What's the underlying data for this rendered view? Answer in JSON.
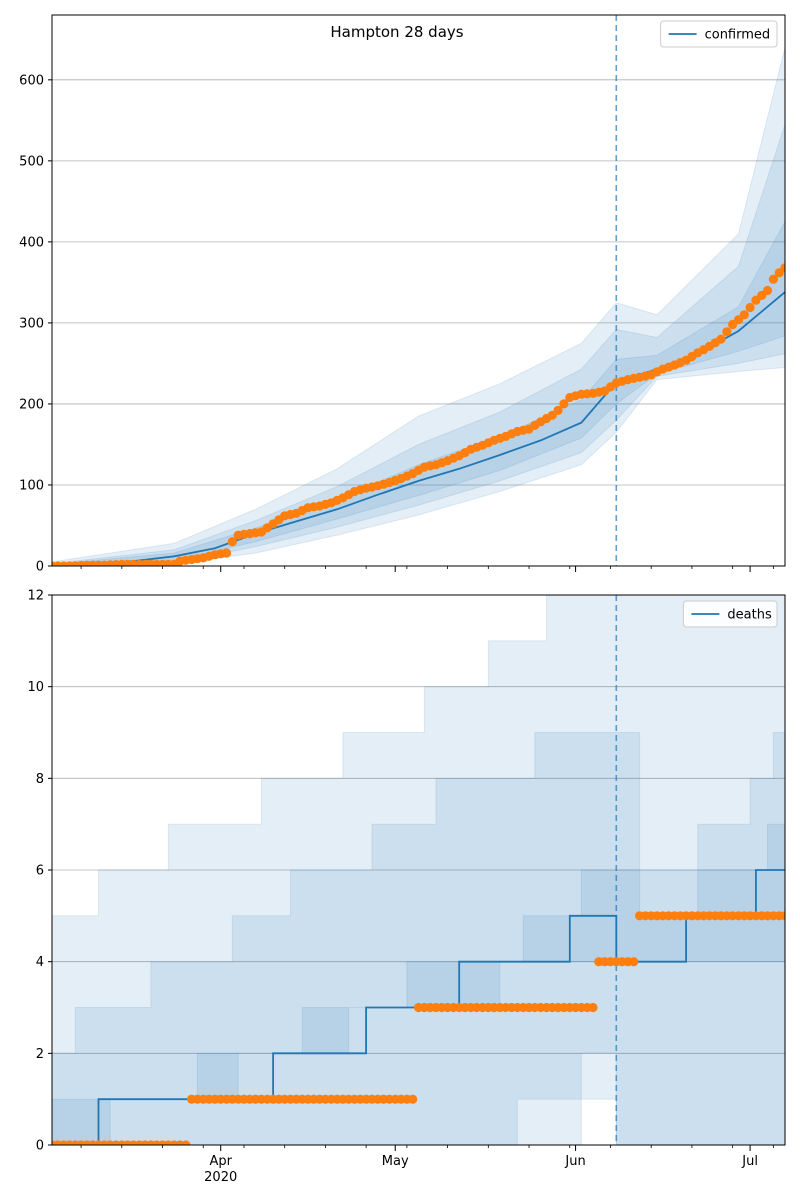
{
  "chart_data": [
    {
      "type": "line",
      "title": "Hampton 28 days",
      "xlabel": "",
      "ylabel": "",
      "ylim": [
        0,
        680
      ],
      "yticks": [
        0,
        100,
        200,
        300,
        400,
        500,
        600
      ],
      "xlim": [
        "2020-03-03",
        "2020-07-07"
      ],
      "x_tick_labels": [
        {
          "date": "2020-04-01",
          "label": "Apr",
          "sublabel": "2020"
        },
        {
          "date": "2020-05-01",
          "label": "May",
          "sublabel": ""
        },
        {
          "date": "2020-06-01",
          "label": "Jun",
          "sublabel": ""
        },
        {
          "date": "2020-07-01",
          "label": "Jul",
          "sublabel": ""
        }
      ],
      "grid": "horizontal",
      "legend": {
        "position": "top-right",
        "entries": [
          "confirmed"
        ]
      },
      "forecast_start": "2020-06-08",
      "colors": {
        "fit": "#1f77b4",
        "observed": "#ff7f0e",
        "band": "#1f77b4"
      },
      "fit": {
        "name": "confirmed",
        "points": [
          [
            "2020-03-03",
            1
          ],
          [
            "2020-03-10",
            3
          ],
          [
            "2020-03-17",
            6
          ],
          [
            "2020-03-24",
            12
          ],
          [
            "2020-03-31",
            22
          ],
          [
            "2020-04-07",
            40
          ],
          [
            "2020-04-14",
            55
          ],
          [
            "2020-04-21",
            70
          ],
          [
            "2020-04-28",
            88
          ],
          [
            "2020-05-05",
            105
          ],
          [
            "2020-05-12",
            120
          ],
          [
            "2020-05-19",
            137
          ],
          [
            "2020-05-26",
            155
          ],
          [
            "2020-06-02",
            177
          ],
          [
            "2020-06-08",
            227
          ],
          [
            "2020-06-15",
            243
          ],
          [
            "2020-06-22",
            262
          ],
          [
            "2020-06-29",
            290
          ],
          [
            "2020-07-07",
            338
          ]
        ]
      },
      "bands": [
        {
          "level": "outer",
          "lower": [
            [
              "2020-03-03",
              0
            ],
            [
              "2020-03-24",
              2
            ],
            [
              "2020-04-07",
              16
            ],
            [
              "2020-04-21",
              38
            ],
            [
              "2020-05-05",
              63
            ],
            [
              "2020-05-19",
              92
            ],
            [
              "2020-06-02",
              125
            ],
            [
              "2020-06-08",
              165
            ],
            [
              "2020-06-15",
              230
            ],
            [
              "2020-06-29",
              240
            ],
            [
              "2020-07-07",
              245
            ]
          ],
          "upper": [
            [
              "2020-03-03",
              5
            ],
            [
              "2020-03-24",
              28
            ],
            [
              "2020-04-07",
              70
            ],
            [
              "2020-04-21",
              120
            ],
            [
              "2020-05-05",
              185
            ],
            [
              "2020-05-19",
              225
            ],
            [
              "2020-06-02",
              275
            ],
            [
              "2020-06-08",
              325
            ],
            [
              "2020-06-15",
              310
            ],
            [
              "2020-06-29",
              410
            ],
            [
              "2020-07-07",
              640
            ]
          ]
        },
        {
          "level": "middle",
          "lower": [
            [
              "2020-03-03",
              0
            ],
            [
              "2020-03-24",
              4
            ],
            [
              "2020-04-07",
              24
            ],
            [
              "2020-04-21",
              48
            ],
            [
              "2020-05-05",
              75
            ],
            [
              "2020-05-19",
              105
            ],
            [
              "2020-06-02",
              140
            ],
            [
              "2020-06-08",
              180
            ],
            [
              "2020-06-15",
              234
            ],
            [
              "2020-06-29",
              250
            ],
            [
              "2020-07-07",
              262
            ]
          ],
          "upper": [
            [
              "2020-03-03",
              3
            ],
            [
              "2020-03-24",
              20
            ],
            [
              "2020-04-07",
              56
            ],
            [
              "2020-04-21",
              98
            ],
            [
              "2020-05-05",
              150
            ],
            [
              "2020-05-19",
              190
            ],
            [
              "2020-06-02",
              243
            ],
            [
              "2020-06-08",
              292
            ],
            [
              "2020-06-15",
              282
            ],
            [
              "2020-06-29",
              370
            ],
            [
              "2020-07-07",
              545
            ]
          ]
        },
        {
          "level": "inner",
          "lower": [
            [
              "2020-03-03",
              1
            ],
            [
              "2020-03-24",
              7
            ],
            [
              "2020-04-07",
              30
            ],
            [
              "2020-04-21",
              58
            ],
            [
              "2020-05-05",
              87
            ],
            [
              "2020-05-19",
              118
            ],
            [
              "2020-06-02",
              158
            ],
            [
              "2020-06-08",
              200
            ],
            [
              "2020-06-15",
              237
            ],
            [
              "2020-06-29",
              265
            ],
            [
              "2020-07-07",
              284
            ]
          ],
          "upper": [
            [
              "2020-03-03",
              2
            ],
            [
              "2020-03-24",
              16
            ],
            [
              "2020-04-07",
              47
            ],
            [
              "2020-04-21",
              82
            ],
            [
              "2020-05-05",
              125
            ],
            [
              "2020-05-19",
              160
            ],
            [
              "2020-06-02",
              205
            ],
            [
              "2020-06-08",
              255
            ],
            [
              "2020-06-15",
              260
            ],
            [
              "2020-06-29",
              320
            ],
            [
              "2020-07-07",
              425
            ]
          ]
        }
      ],
      "observed": {
        "name": "observed",
        "points": [
          [
            "2020-03-03",
            0
          ],
          [
            "2020-03-06",
            0
          ],
          [
            "2020-03-09",
            1
          ],
          [
            "2020-03-12",
            1
          ],
          [
            "2020-03-15",
            2
          ],
          [
            "2020-03-18",
            2
          ],
          [
            "2020-03-21",
            2
          ],
          [
            "2020-03-24",
            2
          ],
          [
            "2020-03-25",
            6
          ],
          [
            "2020-03-27",
            8
          ],
          [
            "2020-03-29",
            10
          ],
          [
            "2020-03-31",
            14
          ],
          [
            "2020-04-02",
            16
          ],
          [
            "2020-04-03",
            30
          ],
          [
            "2020-04-04",
            38
          ],
          [
            "2020-04-06",
            40
          ],
          [
            "2020-04-08",
            42
          ],
          [
            "2020-04-10",
            52
          ],
          [
            "2020-04-12",
            62
          ],
          [
            "2020-04-14",
            65
          ],
          [
            "2020-04-16",
            72
          ],
          [
            "2020-04-18",
            74
          ],
          [
            "2020-04-20",
            78
          ],
          [
            "2020-04-22",
            84
          ],
          [
            "2020-04-24",
            92
          ],
          [
            "2020-04-26",
            96
          ],
          [
            "2020-04-28",
            99
          ],
          [
            "2020-04-30",
            103
          ],
          [
            "2020-05-02",
            108
          ],
          [
            "2020-05-04",
            114
          ],
          [
            "2020-05-06",
            122
          ],
          [
            "2020-05-08",
            125
          ],
          [
            "2020-05-10",
            130
          ],
          [
            "2020-05-12",
            136
          ],
          [
            "2020-05-14",
            144
          ],
          [
            "2020-05-16",
            149
          ],
          [
            "2020-05-18",
            155
          ],
          [
            "2020-05-20",
            160
          ],
          [
            "2020-05-22",
            166
          ],
          [
            "2020-05-24",
            169
          ],
          [
            "2020-05-26",
            178
          ],
          [
            "2020-05-28",
            186
          ],
          [
            "2020-05-29",
            192
          ],
          [
            "2020-05-31",
            208
          ],
          [
            "2020-06-02",
            212
          ],
          [
            "2020-06-04",
            213
          ],
          [
            "2020-06-06",
            216
          ],
          [
            "2020-06-08",
            226
          ],
          [
            "2020-06-10",
            230
          ],
          [
            "2020-06-12",
            233
          ],
          [
            "2020-06-14",
            236
          ],
          [
            "2020-06-16",
            243
          ],
          [
            "2020-06-18",
            248
          ],
          [
            "2020-06-20",
            254
          ],
          [
            "2020-06-22",
            263
          ],
          [
            "2020-06-24",
            271
          ],
          [
            "2020-06-26",
            280
          ],
          [
            "2020-06-28",
            298
          ],
          [
            "2020-06-30",
            310
          ],
          [
            "2020-07-02",
            328
          ],
          [
            "2020-07-04",
            340
          ],
          [
            "2020-07-05",
            354
          ],
          [
            "2020-07-06",
            362
          ],
          [
            "2020-07-07",
            368
          ]
        ]
      }
    },
    {
      "type": "line",
      "title": "",
      "xlabel": "",
      "ylabel": "",
      "ylim": [
        0,
        12
      ],
      "yticks": [
        0,
        2,
        4,
        6,
        8,
        10,
        12
      ],
      "xlim": [
        "2020-03-03",
        "2020-07-07"
      ],
      "x_tick_labels": [
        {
          "date": "2020-04-01",
          "label": "Apr",
          "sublabel": "2020"
        },
        {
          "date": "2020-05-01",
          "label": "May",
          "sublabel": ""
        },
        {
          "date": "2020-06-01",
          "label": "Jun",
          "sublabel": ""
        },
        {
          "date": "2020-07-01",
          "label": "Jul",
          "sublabel": ""
        }
      ],
      "grid": "horizontal",
      "legend": {
        "position": "top-right",
        "entries": [
          "deaths"
        ]
      },
      "forecast_start": "2020-06-08",
      "colors": {
        "fit": "#1f77b4",
        "observed": "#ff7f0e",
        "band": "#1f77b4"
      },
      "fit": {
        "name": "deaths",
        "step": true,
        "points": [
          [
            "2020-03-03",
            0
          ],
          [
            "2020-03-11",
            1
          ],
          [
            "2020-04-10",
            2
          ],
          [
            "2020-04-26",
            3
          ],
          [
            "2020-05-12",
            4
          ],
          [
            "2020-05-31",
            5
          ],
          [
            "2020-06-08",
            4
          ],
          [
            "2020-06-20",
            5
          ],
          [
            "2020-07-02",
            6
          ],
          [
            "2020-07-07",
            6
          ]
        ]
      },
      "bands": [
        {
          "level": "outer",
          "step": true,
          "lower": [
            [
              "2020-03-03",
              0
            ],
            [
              "2020-06-02",
              1
            ],
            [
              "2020-06-08",
              0
            ],
            [
              "2020-07-07",
              0
            ]
          ],
          "upper": [
            [
              "2020-03-03",
              5
            ],
            [
              "2020-03-11",
              6
            ],
            [
              "2020-03-23",
              7
            ],
            [
              "2020-04-08",
              8
            ],
            [
              "2020-04-22",
              9
            ],
            [
              "2020-05-06",
              10
            ],
            [
              "2020-05-17",
              11
            ],
            [
              "2020-05-27",
              12
            ],
            [
              "2020-06-08",
              12
            ],
            [
              "2020-07-07",
              12
            ]
          ]
        },
        {
          "level": "middle",
          "step": true,
          "lower": [
            [
              "2020-03-03",
              0
            ],
            [
              "2020-05-22",
              1
            ],
            [
              "2020-06-02",
              2
            ],
            [
              "2020-06-08",
              0
            ],
            [
              "2020-07-07",
              0
            ]
          ],
          "upper": [
            [
              "2020-03-03",
              2
            ],
            [
              "2020-03-07",
              3
            ],
            [
              "2020-03-20",
              4
            ],
            [
              "2020-04-03",
              5
            ],
            [
              "2020-04-13",
              6
            ],
            [
              "2020-04-27",
              7
            ],
            [
              "2020-05-08",
              8
            ],
            [
              "2020-05-25",
              9
            ],
            [
              "2020-06-08",
              9
            ],
            [
              "2020-06-12",
              5
            ],
            [
              "2020-06-22",
              7
            ],
            [
              "2020-07-01",
              8
            ],
            [
              "2020-07-05",
              9
            ],
            [
              "2020-07-07",
              9
            ]
          ]
        },
        {
          "level": "inner",
          "step": true,
          "lower": [
            [
              "2020-03-03",
              0
            ],
            [
              "2020-03-13",
              1
            ],
            [
              "2020-04-04",
              2
            ],
            [
              "2020-04-23",
              3
            ],
            [
              "2020-05-19",
              4
            ],
            [
              "2020-06-08",
              4
            ],
            [
              "2020-07-07",
              4
            ]
          ],
          "upper": [
            [
              "2020-03-03",
              1
            ],
            [
              "2020-03-28",
              2
            ],
            [
              "2020-04-15",
              3
            ],
            [
              "2020-05-03",
              4
            ],
            [
              "2020-05-23",
              5
            ],
            [
              "2020-06-02",
              6
            ],
            [
              "2020-06-08",
              6
            ],
            [
              "2020-06-24",
              6
            ],
            [
              "2020-07-04",
              7
            ],
            [
              "2020-07-07",
              7
            ]
          ]
        }
      ],
      "observed": {
        "name": "observed",
        "points": [
          [
            "2020-03-03",
            0
          ],
          [
            "2020-03-26",
            0
          ],
          [
            "2020-03-27",
            1
          ],
          [
            "2020-05-04",
            1
          ],
          [
            "2020-05-05",
            3
          ],
          [
            "2020-06-04",
            3
          ],
          [
            "2020-06-05",
            4
          ],
          [
            "2020-06-11",
            4
          ],
          [
            "2020-06-12",
            5
          ],
          [
            "2020-07-07",
            5
          ]
        ]
      }
    }
  ]
}
